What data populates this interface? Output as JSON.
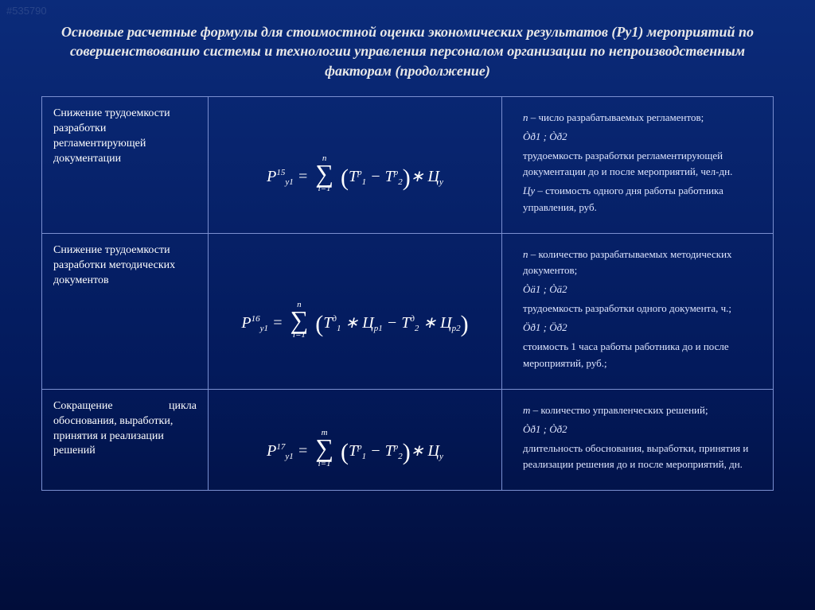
{
  "page": {
    "watermark": "#535790",
    "title": "Основные расчетные формулы для стоимостной оценки экономических результатов (Ру1) мероприятий по совершенствованию системы и технологии управления персоналом организации по непроизводственным факторам (продолжение)"
  },
  "rows": [
    {
      "label": "Снижение трудоемкости разработки регламентирующей документации",
      "formula": {
        "P_super": "15",
        "P_sub": "у1",
        "sum_top": "n",
        "sum_bot": "i=1",
        "body_html": "Т<span class='sup'>р</span><span class='sub'>1</span> − Т<span class='sup'>р</span><span class='sub'>2</span>",
        "tail_html": "∗ Ц<span class='sub'>у</span>"
      },
      "desc": [
        "<span class='sym'>n</span> – число разрабатываемых регламентов;",
        "<span class='sym'>Ò<span class='sup'>ð</span><span class='sub'>1</span> ; Ò<span class='sup'>ð</span><span class='sub'>2</span></span>",
        "трудоемкость разработки регламентирующей документации до и после мероприятий, чел-дн.",
        "<span class='sym'>Цу</span> – стоимость одного дня работы работника управления, руб."
      ]
    },
    {
      "label": "Снижение трудоемкости разработки методических документов",
      "formula": {
        "P_super": "16",
        "P_sub": "у1",
        "sum_top": "n",
        "sum_bot": "i=1",
        "body_html": "Т<span class='sup'>д</span><span class='sub'>1</span> ∗ Ц<span class='sub'>р1</span> − Т<span class='sup'>д</span><span class='sub'>2</span> ∗ Ц<span class='sub'>р2</span>",
        "tail_html": ""
      },
      "desc": [
        "<span class='sym'>n</span> – количество разрабатываемых методических документов;",
        "<span class='sym'>Ò<span class='sup'>ä</span><span class='sub'>1</span> ; Ò<span class='sup'>ä</span><span class='sub'>2</span></span>",
        "трудоемкость разработки одного документа, ч.;",
        "<span class='sym'>Ö<span class='sub'>ð1</span> ; Ö<span class='sub'>ð2</span></span>",
        "стоимость 1 часа работы работника до и после мероприятий, руб.;"
      ]
    },
    {
      "label_html": "<div class='justify'>Сокращение цикла</div>обоснования, выработки, принятия и реализации решений",
      "formula": {
        "P_super": "17",
        "P_sub": "у1",
        "sum_top": "m",
        "sum_bot": "i=1",
        "body_html": "Т<span class='sup'>р</span><span class='sub'>1</span> − Т<span class='sup'>р</span><span class='sub'>2</span>",
        "tail_html": "∗ Ц<span class='sub'>у</span>"
      },
      "desc": [
        "<span class='sym'>m</span> – количество управленческих решений;",
        "<span class='sym'>Ò<span class='sup'>ð</span><span class='sub'>1</span> ; Ò<span class='sup'>ð</span><span class='sub'>2</span></span>",
        "длительность обоснования, выработки, принятия и реализации решения до и после мероприятий, дн."
      ]
    }
  ],
  "style": {
    "title_color": "#e8e8e8",
    "border_color": "#7a8fd0",
    "bg_gradient": [
      "#0b2b7a",
      "#031a5c",
      "#010d3a"
    ]
  }
}
